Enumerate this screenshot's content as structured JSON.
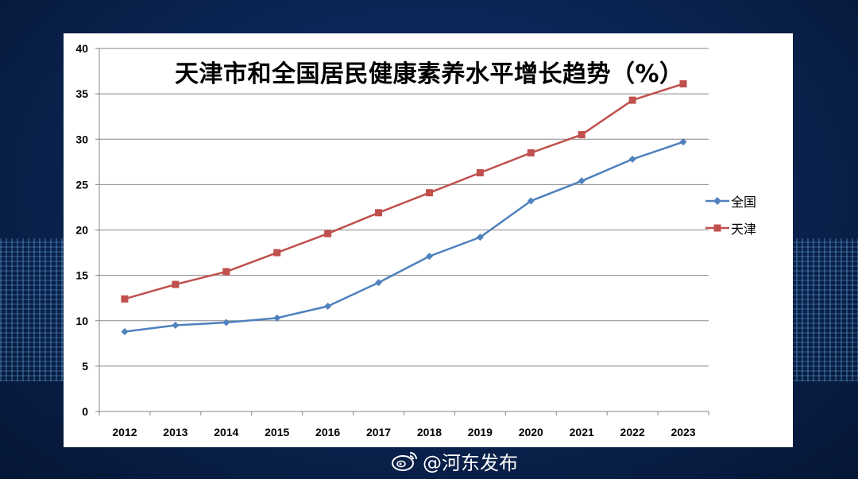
{
  "watermark": {
    "text": "@河东发布",
    "icon": "weibo-icon"
  },
  "colors": {
    "background": "#0b2656",
    "slide": "#ffffff",
    "national": "#4f81bd",
    "tianjin": "#c0504d",
    "gridline": "#868686"
  },
  "chart_data": {
    "type": "line",
    "title": "天津市和全国居民健康素养水平增长趋势（%）",
    "xlabel": "",
    "ylabel": "",
    "categories": [
      "2012",
      "2013",
      "2014",
      "2015",
      "2016",
      "2017",
      "2018",
      "2019",
      "2020",
      "2021",
      "2022",
      "2023"
    ],
    "ylim": [
      0,
      40
    ],
    "yticks": [
      0,
      5,
      10,
      15,
      20,
      25,
      30,
      35,
      40
    ],
    "grid": true,
    "legend_position": "right",
    "series": [
      {
        "name": "全国",
        "marker": "diamond",
        "color": "#4f81bd",
        "values": [
          8.8,
          9.5,
          9.8,
          10.3,
          11.6,
          14.2,
          17.1,
          19.2,
          23.2,
          25.4,
          27.8,
          29.7
        ]
      },
      {
        "name": "天津",
        "marker": "square",
        "color": "#c0504d",
        "values": [
          12.4,
          14.0,
          15.4,
          17.5,
          19.6,
          21.9,
          24.1,
          26.3,
          28.5,
          30.5,
          34.3,
          36.1
        ]
      }
    ]
  }
}
